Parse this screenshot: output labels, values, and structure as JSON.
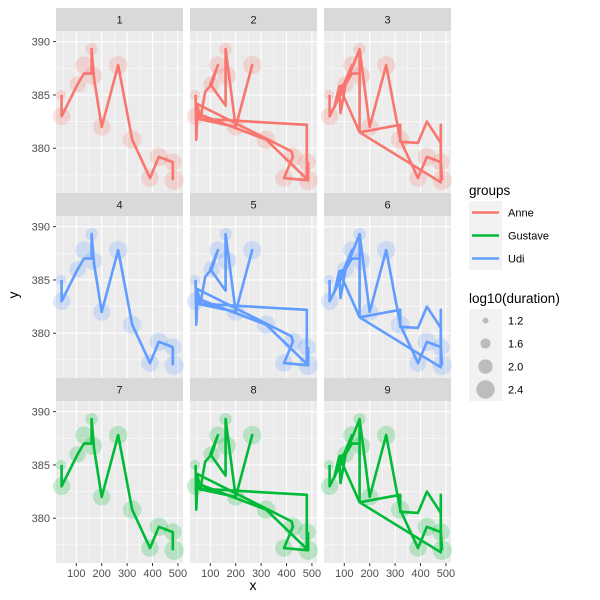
{
  "chart_data": {
    "type": "line",
    "xlabel": "x",
    "ylabel": "y",
    "xlim": [
      20,
      520
    ],
    "ylim": [
      375.8,
      391.0
    ],
    "x_ticks": [
      100,
      200,
      300,
      400,
      500
    ],
    "y_ticks": [
      380,
      385,
      390
    ],
    "grid": true,
    "legend_placement": "right",
    "colors": {
      "Anne": "#F8766D",
      "Gustave": "#00BA38",
      "Udi": "#619CFF"
    },
    "panel_background": "#EBEBEB",
    "strip_background": "#D9D9D9",
    "legend_color": {
      "title": "groups",
      "entries": [
        "Anne",
        "Gustave",
        "Udi"
      ]
    },
    "legend_size": {
      "title": "log10(duration)",
      "entries": [
        "1.2",
        "1.6",
        "2.0",
        "2.4"
      ],
      "values": [
        1.2,
        1.6,
        2.0,
        2.4
      ]
    },
    "points": [
      {
        "x": 40,
        "y": 385.0,
        "size": 1.6
      },
      {
        "x": 42,
        "y": 383.0,
        "size": 2.3
      },
      {
        "x": 105,
        "y": 386.0,
        "size": 2.2
      },
      {
        "x": 130,
        "y": 387.8,
        "size": 2.3
      },
      {
        "x": 160,
        "y": 389.3,
        "size": 1.8
      },
      {
        "x": 165,
        "y": 386.8,
        "size": 2.4
      },
      {
        "x": 200,
        "y": 382.0,
        "size": 2.3
      },
      {
        "x": 265,
        "y": 387.8,
        "size": 2.4
      },
      {
        "x": 320,
        "y": 380.8,
        "size": 2.4
      },
      {
        "x": 390,
        "y": 377.2,
        "size": 2.3
      },
      {
        "x": 425,
        "y": 379.2,
        "size": 2.4
      },
      {
        "x": 480,
        "y": 378.7,
        "size": 2.3
      },
      {
        "x": 485,
        "y": 377.0,
        "size": 2.5
      }
    ],
    "panels": [
      {
        "label": "1",
        "group": "Anne",
        "path": [
          [
            42,
            385.0
          ],
          [
            42,
            383.0
          ],
          [
            105,
            386.0
          ],
          [
            130,
            387.0
          ],
          [
            160,
            387.0
          ],
          [
            160,
            389.3
          ],
          [
            170,
            386.5
          ],
          [
            200,
            382.0
          ],
          [
            265,
            387.8
          ],
          [
            320,
            380.8
          ],
          [
            390,
            377.2
          ],
          [
            425,
            379.2
          ],
          [
            480,
            378.7
          ],
          [
            480,
            377.0
          ]
        ]
      },
      {
        "label": "2",
        "group": "Anne",
        "path": [
          [
            42,
            385.0
          ],
          [
            45,
            380.8
          ],
          [
            50,
            384.0
          ],
          [
            60,
            382.7
          ],
          [
            80,
            385.3
          ],
          [
            105,
            386.0
          ],
          [
            130,
            387.8
          ],
          [
            100,
            386.0
          ],
          [
            160,
            384.0
          ],
          [
            160,
            389.3
          ],
          [
            200,
            382.0
          ],
          [
            265,
            387.8
          ],
          [
            200,
            382.0
          ],
          [
            42,
            382.8
          ],
          [
            480,
            382.2
          ],
          [
            480,
            381.0
          ],
          [
            480,
            377.0
          ],
          [
            390,
            377.2
          ],
          [
            425,
            379.2
          ],
          [
            420,
            379.7
          ],
          [
            45,
            384.2
          ],
          [
            45,
            383.3
          ],
          [
            320,
            380.8
          ],
          [
            485,
            377.0
          ],
          [
            485,
            378.7
          ]
        ]
      },
      {
        "label": "3",
        "group": "Anne",
        "path": [
          [
            42,
            385.0
          ],
          [
            42,
            383.0
          ],
          [
            105,
            386.0
          ],
          [
            130,
            387.8
          ],
          [
            60,
            383.8
          ],
          [
            80,
            385.8
          ],
          [
            105,
            386.0
          ],
          [
            160,
            389.3
          ],
          [
            160,
            381.5
          ],
          [
            320,
            382.2
          ],
          [
            320,
            380.6
          ],
          [
            390,
            380.5
          ],
          [
            425,
            382.5
          ],
          [
            480,
            380.5
          ],
          [
            480,
            382.2
          ],
          [
            480,
            376.8
          ],
          [
            160,
            381.5
          ],
          [
            80,
            385.8
          ],
          [
            85,
            383.3
          ],
          [
            105,
            386.0
          ],
          [
            130,
            387.0
          ],
          [
            160,
            387.0
          ],
          [
            160,
            389.3
          ],
          [
            200,
            382.0
          ],
          [
            265,
            387.8
          ],
          [
            320,
            380.8
          ],
          [
            390,
            377.2
          ],
          [
            425,
            379.2
          ],
          [
            480,
            378.7
          ],
          [
            485,
            377.0
          ]
        ]
      },
      {
        "label": "4",
        "group": "Udi",
        "path": [
          [
            42,
            385.0
          ],
          [
            42,
            383.0
          ],
          [
            105,
            386.0
          ],
          [
            130,
            387.0
          ],
          [
            160,
            387.0
          ],
          [
            160,
            389.3
          ],
          [
            170,
            386.5
          ],
          [
            200,
            382.0
          ],
          [
            265,
            387.8
          ],
          [
            320,
            380.8
          ],
          [
            390,
            377.2
          ],
          [
            425,
            379.2
          ],
          [
            480,
            378.7
          ],
          [
            480,
            377.0
          ]
        ]
      },
      {
        "label": "5",
        "group": "Udi",
        "path": [
          [
            42,
            385.0
          ],
          [
            45,
            380.8
          ],
          [
            50,
            384.0
          ],
          [
            60,
            382.7
          ],
          [
            80,
            385.3
          ],
          [
            105,
            386.0
          ],
          [
            130,
            387.8
          ],
          [
            100,
            386.0
          ],
          [
            160,
            384.0
          ],
          [
            160,
            389.3
          ],
          [
            200,
            382.0
          ],
          [
            265,
            387.8
          ],
          [
            200,
            382.0
          ],
          [
            42,
            382.8
          ],
          [
            480,
            382.2
          ],
          [
            480,
            381.0
          ],
          [
            480,
            377.0
          ],
          [
            390,
            377.2
          ],
          [
            425,
            379.2
          ],
          [
            420,
            379.7
          ],
          [
            45,
            384.2
          ],
          [
            45,
            383.3
          ],
          [
            320,
            380.8
          ],
          [
            485,
            377.0
          ],
          [
            485,
            378.7
          ]
        ]
      },
      {
        "label": "6",
        "group": "Udi",
        "path": [
          [
            42,
            385.0
          ],
          [
            42,
            383.0
          ],
          [
            105,
            386.0
          ],
          [
            130,
            387.8
          ],
          [
            60,
            383.8
          ],
          [
            80,
            385.8
          ],
          [
            105,
            386.0
          ],
          [
            160,
            389.3
          ],
          [
            160,
            381.5
          ],
          [
            320,
            382.2
          ],
          [
            320,
            380.6
          ],
          [
            390,
            380.5
          ],
          [
            425,
            382.5
          ],
          [
            480,
            380.5
          ],
          [
            480,
            382.2
          ],
          [
            480,
            376.8
          ],
          [
            160,
            381.5
          ],
          [
            80,
            385.8
          ],
          [
            85,
            383.3
          ],
          [
            105,
            386.0
          ],
          [
            130,
            387.0
          ],
          [
            160,
            387.0
          ],
          [
            160,
            389.3
          ],
          [
            200,
            382.0
          ],
          [
            265,
            387.8
          ],
          [
            320,
            380.8
          ],
          [
            390,
            377.2
          ],
          [
            425,
            379.2
          ],
          [
            480,
            378.7
          ],
          [
            485,
            377.0
          ]
        ]
      },
      {
        "label": "7",
        "group": "Gustave",
        "path": [
          [
            42,
            385.0
          ],
          [
            42,
            383.0
          ],
          [
            105,
            386.0
          ],
          [
            130,
            387.0
          ],
          [
            160,
            387.0
          ],
          [
            160,
            389.3
          ],
          [
            170,
            386.5
          ],
          [
            200,
            382.0
          ],
          [
            265,
            387.8
          ],
          [
            320,
            380.8
          ],
          [
            390,
            377.2
          ],
          [
            425,
            379.2
          ],
          [
            480,
            378.7
          ],
          [
            480,
            377.0
          ]
        ]
      },
      {
        "label": "8",
        "group": "Gustave",
        "path": [
          [
            42,
            385.0
          ],
          [
            45,
            380.8
          ],
          [
            50,
            384.0
          ],
          [
            60,
            382.7
          ],
          [
            80,
            385.3
          ],
          [
            105,
            386.0
          ],
          [
            130,
            387.8
          ],
          [
            100,
            386.0
          ],
          [
            160,
            384.0
          ],
          [
            160,
            389.3
          ],
          [
            200,
            382.0
          ],
          [
            265,
            387.8
          ],
          [
            200,
            382.0
          ],
          [
            42,
            382.8
          ],
          [
            480,
            382.2
          ],
          [
            480,
            381.0
          ],
          [
            480,
            377.0
          ],
          [
            390,
            377.2
          ],
          [
            425,
            379.2
          ],
          [
            420,
            379.7
          ],
          [
            45,
            384.2
          ],
          [
            45,
            383.3
          ],
          [
            320,
            380.8
          ],
          [
            485,
            377.0
          ],
          [
            485,
            378.7
          ]
        ]
      },
      {
        "label": "9",
        "group": "Gustave",
        "path": [
          [
            42,
            385.0
          ],
          [
            42,
            383.0
          ],
          [
            105,
            386.0
          ],
          [
            130,
            387.8
          ],
          [
            60,
            383.8
          ],
          [
            80,
            385.8
          ],
          [
            105,
            386.0
          ],
          [
            160,
            389.3
          ],
          [
            160,
            381.5
          ],
          [
            320,
            382.2
          ],
          [
            320,
            380.6
          ],
          [
            390,
            380.5
          ],
          [
            425,
            382.5
          ],
          [
            480,
            380.5
          ],
          [
            480,
            382.2
          ],
          [
            480,
            376.8
          ],
          [
            160,
            381.5
          ],
          [
            80,
            385.8
          ],
          [
            85,
            383.3
          ],
          [
            105,
            386.0
          ],
          [
            130,
            387.0
          ],
          [
            160,
            387.0
          ],
          [
            160,
            389.3
          ],
          [
            200,
            382.0
          ],
          [
            265,
            387.8
          ],
          [
            320,
            380.8
          ],
          [
            390,
            377.2
          ],
          [
            425,
            379.2
          ],
          [
            480,
            378.7
          ],
          [
            485,
            377.0
          ]
        ]
      }
    ]
  }
}
